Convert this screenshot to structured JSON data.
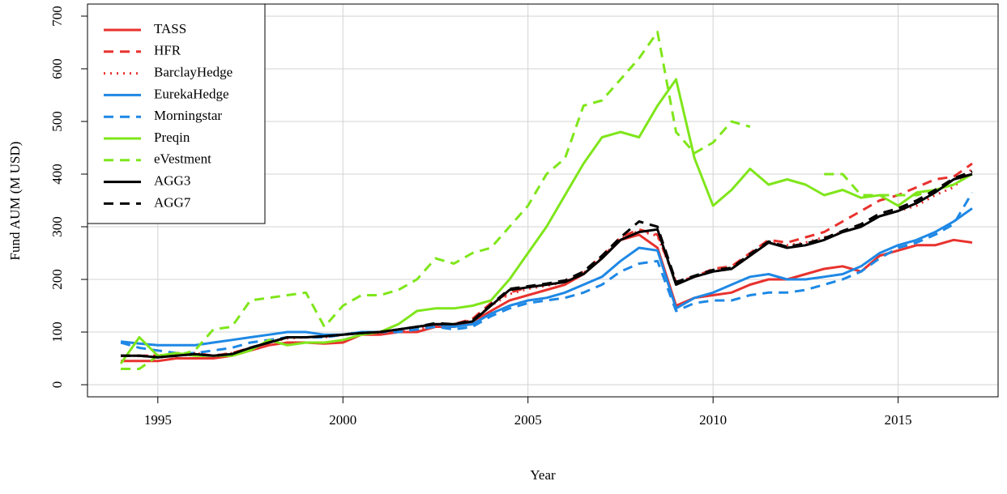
{
  "chart_data": {
    "type": "line",
    "xlabel": "Year",
    "ylabel": "Fund AUM (M USD)",
    "x": [
      1994,
      1994.5,
      1995,
      1995.5,
      1996,
      1996.5,
      1997,
      1997.5,
      1998,
      1998.5,
      1999,
      1999.5,
      2000,
      2000.5,
      2001,
      2001.5,
      2002,
      2002.5,
      2003,
      2003.5,
      2004,
      2004.5,
      2005,
      2005.5,
      2006,
      2006.5,
      2007,
      2007.5,
      2008,
      2008.5,
      2009,
      2009.5,
      2010,
      2010.5,
      2011,
      2011.5,
      2012,
      2012.5,
      2013,
      2013.5,
      2014,
      2014.5,
      2015,
      2015.5,
      2016,
      2016.5,
      2017
    ],
    "series": [
      {
        "name": "TASS",
        "color": "#e8322e",
        "linestyle": "solid",
        "values": [
          45,
          45,
          45,
          50,
          50,
          50,
          55,
          65,
          75,
          80,
          80,
          78,
          80,
          95,
          95,
          100,
          100,
          110,
          110,
          120,
          140,
          160,
          170,
          180,
          190,
          210,
          240,
          275,
          285,
          260,
          150,
          165,
          170,
          175,
          190,
          200,
          200,
          210,
          220,
          225,
          215,
          245,
          255,
          265,
          265,
          275,
          270
        ]
      },
      {
        "name": "HFR",
        "color": "#e8322e",
        "linestyle": "dashed",
        "values": [
          55,
          55,
          55,
          60,
          60,
          55,
          60,
          70,
          80,
          90,
          90,
          90,
          95,
          100,
          100,
          100,
          105,
          115,
          115,
          125,
          155,
          175,
          185,
          190,
          195,
          215,
          245,
          280,
          295,
          285,
          195,
          205,
          220,
          225,
          250,
          275,
          270,
          280,
          290,
          310,
          330,
          350,
          360,
          375,
          390,
          395,
          420
        ]
      },
      {
        "name": "BarclayHedge",
        "color": "#e8322e",
        "linestyle": "dotted",
        "values": [
          55,
          55,
          55,
          58,
          60,
          55,
          60,
          70,
          80,
          88,
          90,
          90,
          95,
          100,
          100,
          100,
          105,
          113,
          115,
          123,
          150,
          172,
          182,
          188,
          195,
          212,
          242,
          278,
          292,
          283,
          195,
          205,
          215,
          220,
          245,
          270,
          265,
          270,
          280,
          290,
          300,
          320,
          330,
          340,
          360,
          375,
          410
        ]
      },
      {
        "name": "EurekaHedge",
        "color": "#1e88e5",
        "linestyle": "solid",
        "values": [
          82,
          78,
          75,
          75,
          75,
          80,
          85,
          90,
          95,
          100,
          100,
          95,
          95,
          100,
          100,
          105,
          110,
          115,
          110,
          115,
          135,
          150,
          160,
          165,
          175,
          190,
          205,
          235,
          260,
          255,
          145,
          165,
          175,
          190,
          205,
          210,
          200,
          200,
          205,
          210,
          225,
          250,
          265,
          275,
          290,
          310,
          335
        ]
      },
      {
        "name": "Morningstar",
        "color": "#1e88e5",
        "linestyle": "dashed",
        "values": [
          80,
          70,
          65,
          60,
          60,
          65,
          70,
          80,
          85,
          90,
          90,
          90,
          95,
          100,
          100,
          100,
          105,
          110,
          105,
          110,
          130,
          145,
          155,
          160,
          165,
          175,
          190,
          215,
          230,
          235,
          140,
          155,
          160,
          160,
          170,
          175,
          175,
          180,
          190,
          200,
          215,
          240,
          260,
          270,
          285,
          305,
          365
        ]
      },
      {
        "name": "Preqin",
        "color": "#7fe61a",
        "linestyle": "solid",
        "values": [
          40,
          90,
          55,
          60,
          55,
          55,
          55,
          65,
          85,
          75,
          80,
          80,
          85,
          95,
          100,
          115,
          140,
          145,
          145,
          150,
          160,
          200,
          250,
          300,
          360,
          420,
          470,
          480,
          470,
          530,
          580,
          430,
          340,
          370,
          410,
          380,
          390,
          380,
          360,
          370,
          355,
          360,
          340,
          365,
          370,
          380,
          400
        ]
      },
      {
        "name": "eVestment",
        "color": "#7fe61a",
        "linestyle": "dashed",
        "values": [
          30,
          30,
          55,
          55,
          65,
          105,
          110,
          160,
          165,
          170,
          175,
          110,
          150,
          170,
          170,
          180,
          200,
          240,
          230,
          250,
          260,
          300,
          340,
          400,
          430,
          530,
          540,
          580,
          620,
          670,
          480,
          440,
          460,
          500,
          490,
          null,
          null,
          null,
          400,
          400,
          360,
          360,
          360,
          360,
          370,
          380,
          400
        ]
      },
      {
        "name": "AGG3",
        "color": "#000000",
        "linestyle": "solid",
        "values": [
          55,
          55,
          52,
          55,
          58,
          55,
          58,
          70,
          80,
          90,
          90,
          92,
          95,
          98,
          100,
          105,
          110,
          115,
          115,
          120,
          150,
          180,
          185,
          190,
          195,
          210,
          240,
          275,
          290,
          295,
          190,
          205,
          215,
          220,
          245,
          270,
          260,
          265,
          275,
          290,
          300,
          320,
          330,
          345,
          365,
          390,
          400
        ]
      },
      {
        "name": "AGG7",
        "color": "#000000",
        "linestyle": "dashed",
        "values": [
          55,
          55,
          52,
          55,
          58,
          55,
          58,
          70,
          80,
          90,
          90,
          92,
          95,
          98,
          100,
          105,
          110,
          117,
          115,
          122,
          152,
          182,
          187,
          192,
          198,
          215,
          245,
          280,
          310,
          300,
          195,
          207,
          218,
          222,
          248,
          272,
          262,
          268,
          278,
          292,
          305,
          325,
          335,
          350,
          370,
          392,
          405
        ]
      }
    ],
    "xlim": [
      1993.1,
      2017.7
    ],
    "xticks": [
      1995,
      2000,
      2005,
      2010,
      2015
    ],
    "ylim": [
      -23,
      723
    ],
    "yticks": [
      0,
      100,
      200,
      300,
      400,
      500,
      600,
      700
    ],
    "grid": true,
    "legend": "top-left"
  }
}
